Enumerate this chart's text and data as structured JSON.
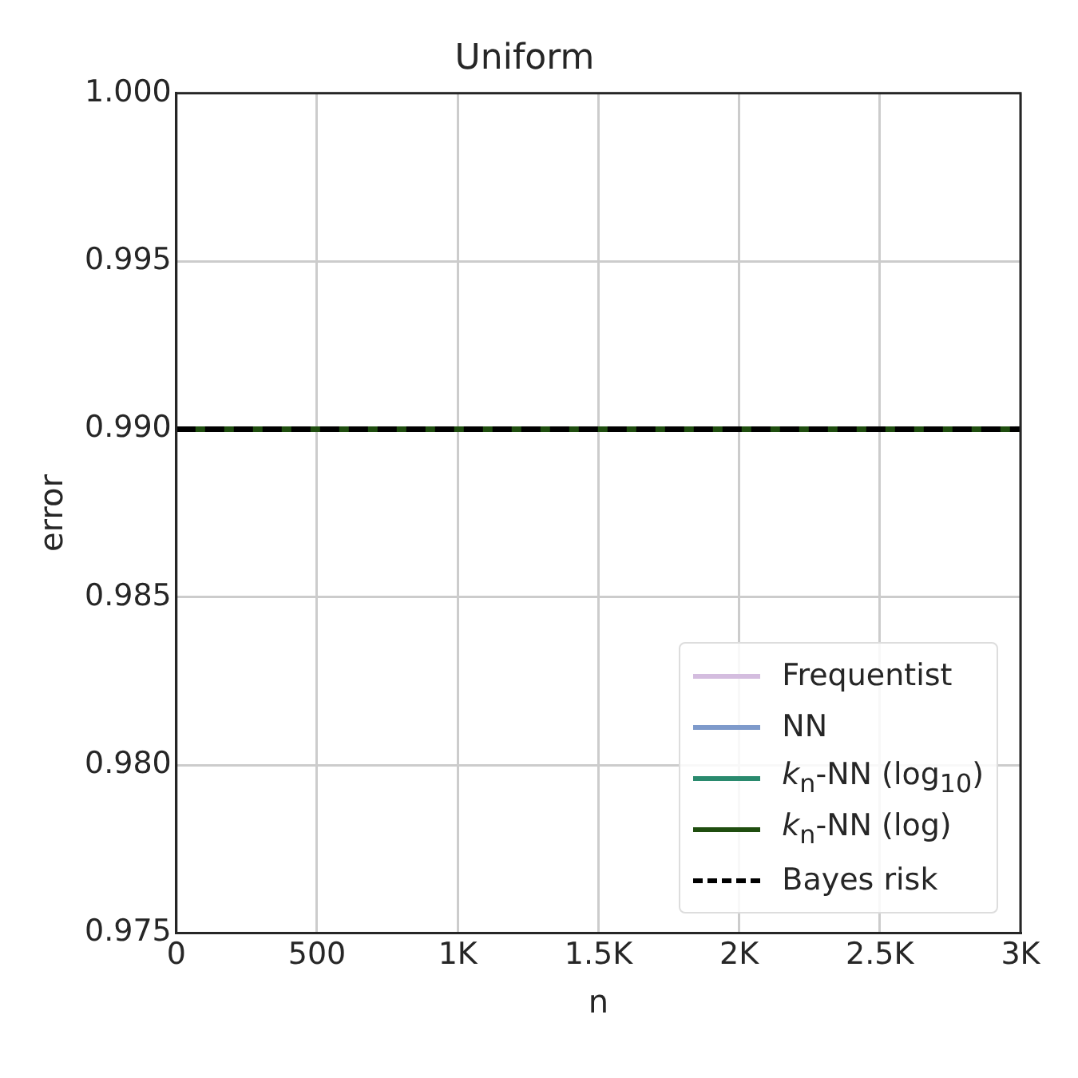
{
  "chart_data": {
    "type": "line",
    "title": "Uniform",
    "xlabel": "n",
    "ylabel": "error",
    "x": [
      0,
      3000
    ],
    "series": [
      {
        "name": "Frequentist",
        "color": "#d4bddf",
        "values": [
          null,
          null
        ]
      },
      {
        "name": "NN",
        "color": "#7e9acb",
        "values": [
          null,
          null
        ]
      },
      {
        "name": "k$_{n}$-NN (log$_{10}$)",
        "color": "#2a8a6e",
        "values": [
          null,
          null
        ]
      },
      {
        "name": "k$_{n}$-NN (log)",
        "color": "#1f4d0f",
        "values": [
          0.99,
          0.99
        ]
      },
      {
        "name": "Bayes risk",
        "color": "#000000",
        "values": [
          0.99,
          0.99
        ],
        "line_style": "dashed"
      }
    ],
    "xlim": [
      0,
      3000
    ],
    "xticks": [
      0,
      500,
      {
        "value": 1000,
        "label": "1K"
      },
      {
        "value": 1500,
        "label": "1.5K"
      },
      {
        "value": 2000,
        "label": "2K"
      },
      {
        "value": 2500,
        "label": "2.5K"
      },
      {
        "value": 3000,
        "label": "3K"
      }
    ],
    "ylim": [
      0.975,
      1.0
    ],
    "yticks": [
      {
        "value": 0.975,
        "label": "0.975"
      },
      {
        "value": 0.98,
        "label": "0.980"
      },
      {
        "value": 0.985,
        "label": "0.985"
      },
      {
        "value": 0.99,
        "label": "0.990"
      },
      {
        "value": 0.995,
        "label": "0.995"
      },
      {
        "value": 1.0,
        "label": "1.000"
      }
    ],
    "grid": true,
    "legend": "bottom right",
    "marker": "none",
    "line_style": "solid"
  }
}
